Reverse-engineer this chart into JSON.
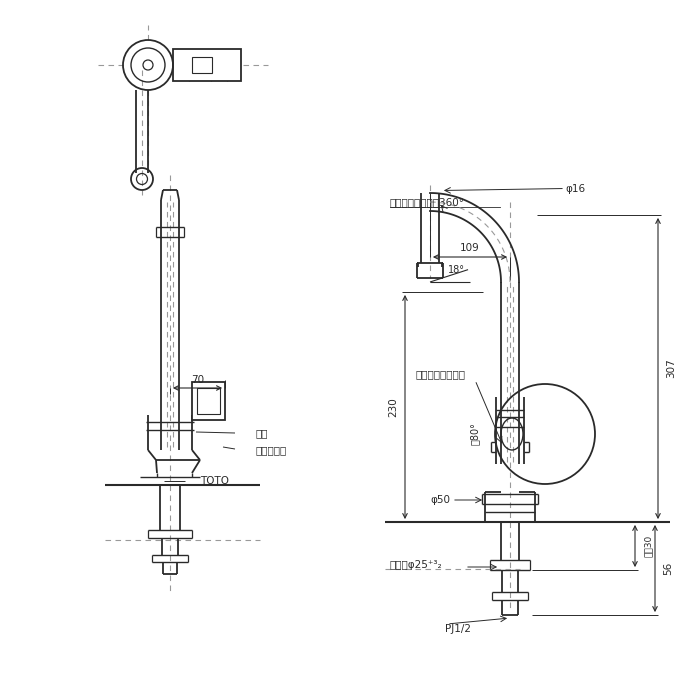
{
  "bg_color": "#ffffff",
  "line_color": "#2a2a2a",
  "dim_color": "#2a2a2a",
  "text_color": "#2a2a2a",
  "dashed_color": "#999999",
  "annotations": {
    "spout_rotation": "スパウト回転觓度360°",
    "handle_rotation": "ハンドル回転觓度",
    "phi16": "φ16",
    "phi50": "φ50",
    "phi180": "終80°",
    "dim109": "109",
    "dim230": "230",
    "dim307": "307",
    "dim70": "70",
    "dim18": "18°",
    "dim56": "56",
    "dim30": "最大30",
    "mounting_hole": "取付稴φ25⁺³₂",
    "pj": "PJ1/2",
    "toto": "TOTO",
    "blue": "青色",
    "ivory": "アイボリー"
  }
}
